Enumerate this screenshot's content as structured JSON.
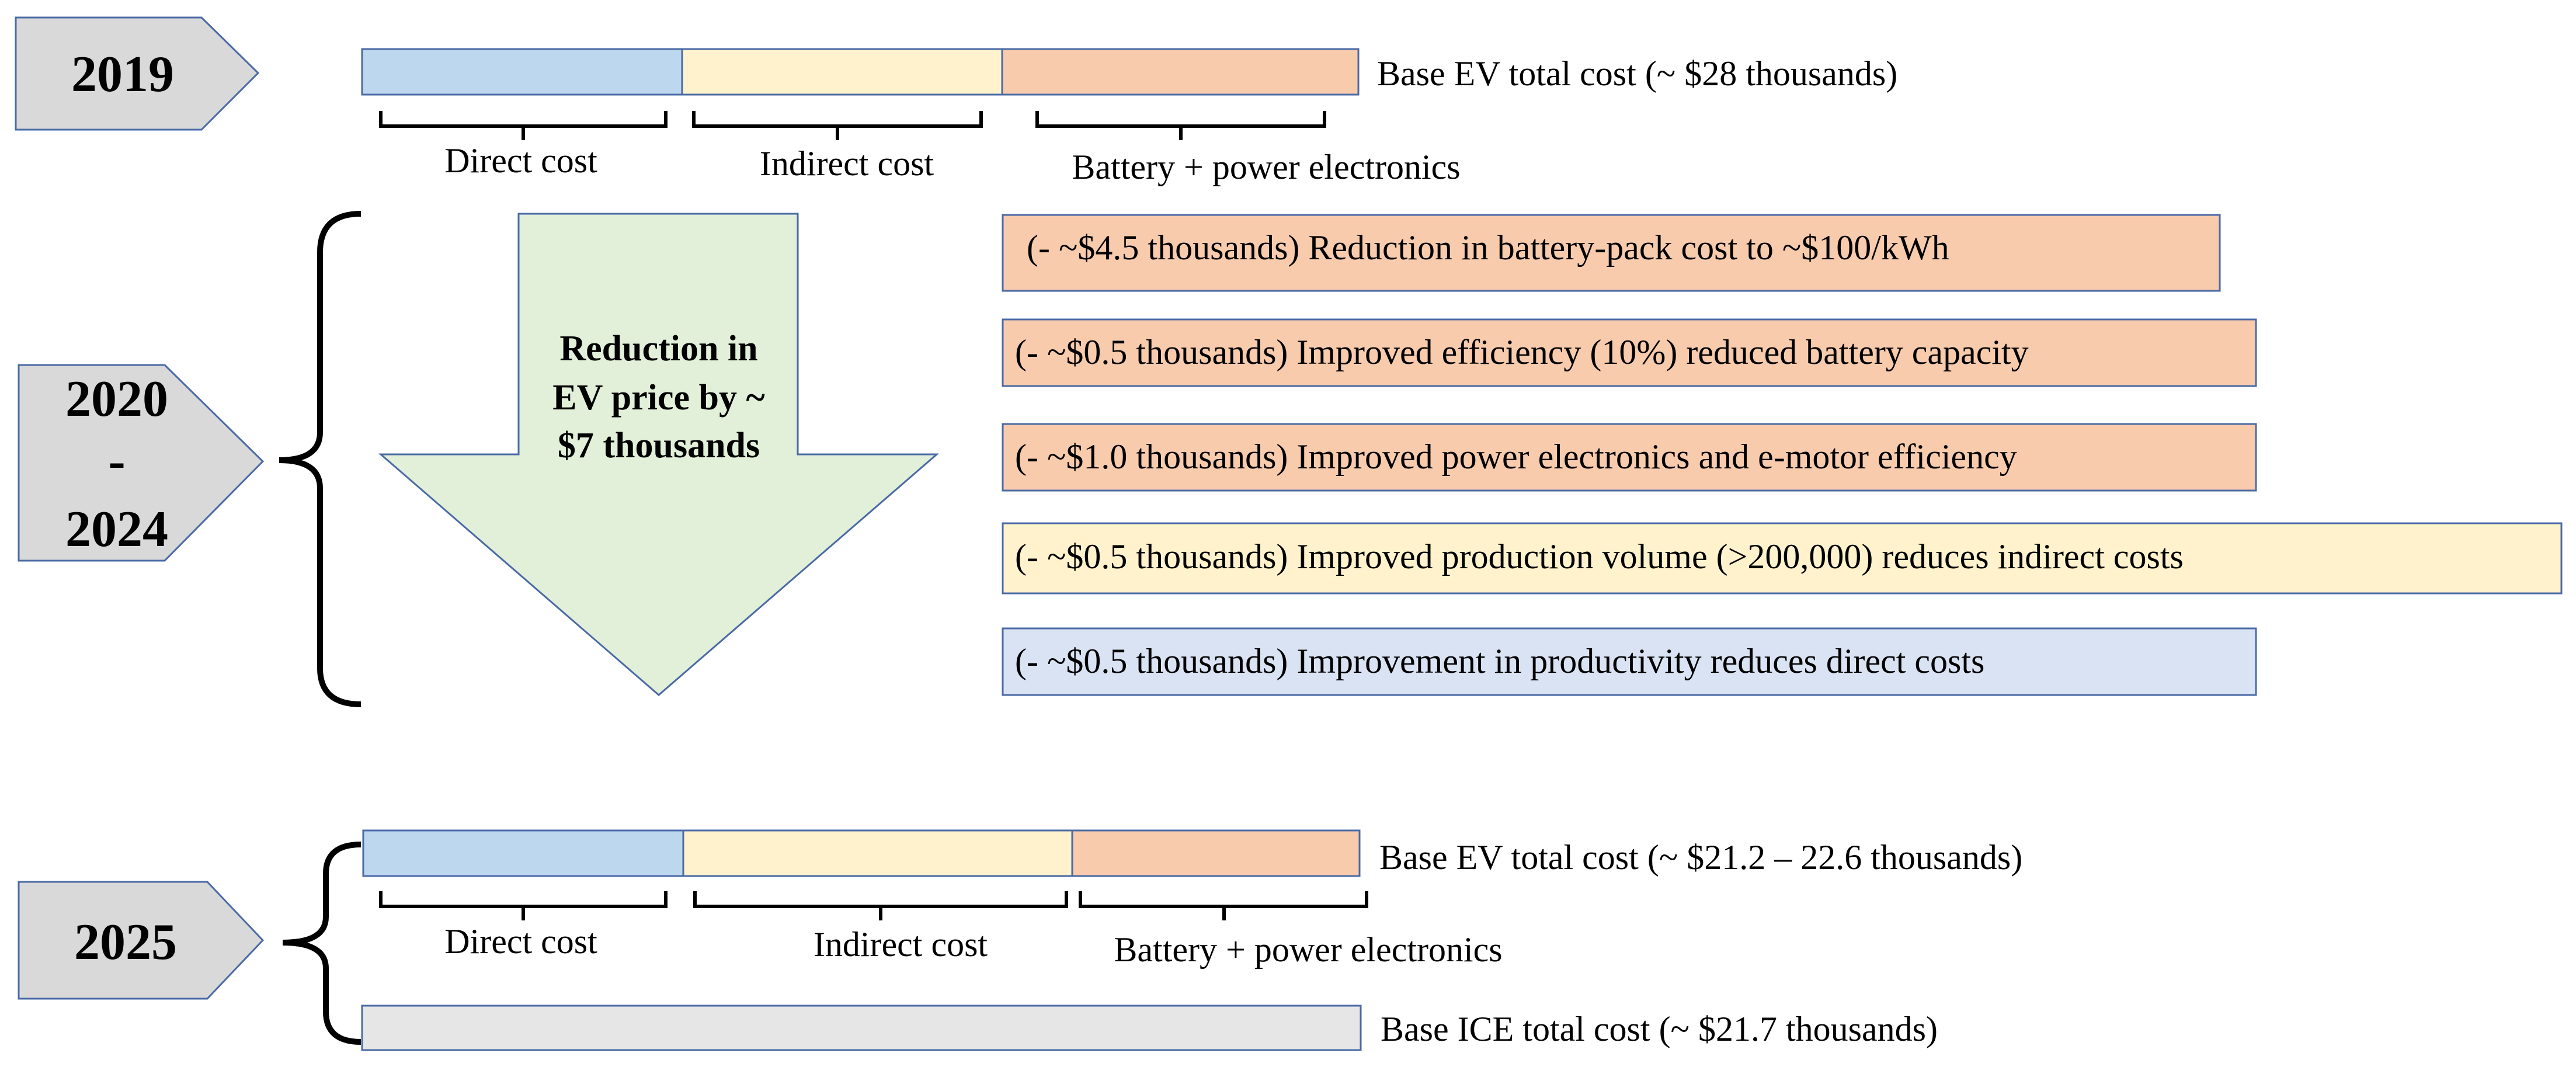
{
  "colors": {
    "direct": "#bdd7ee",
    "indirect": "#fff2cc",
    "battery": "#f8cbad",
    "productivity": "#dae3f3",
    "ice": "#e7e6e6",
    "year_tag": "#d9d9d9",
    "arrow": "#e2efd9",
    "border": "#4a6aa5"
  },
  "section_2019": {
    "year": "2019",
    "bar_label": "Base EV total cost (~ $28 thousands)",
    "segments": [
      "Direct cost",
      "Indirect cost",
      "Battery + power electronics"
    ]
  },
  "section_2020_2024": {
    "year_line1": "2020",
    "year_line2": "-",
    "year_line3": "2024",
    "arrow_text": [
      "Reduction in",
      "EV price by ~",
      "$7 thousands"
    ],
    "reductions": [
      {
        "text": "(- ~$4.5 thousands) Reduction in battery-pack cost to ~$100/kWh",
        "category": "battery"
      },
      {
        "text": "(- ~$0.5 thousands) Improved efficiency (10%) reduced battery capacity",
        "category": "battery"
      },
      {
        "text": "(- ~$1.0 thousands) Improved power electronics and e-motor efficiency",
        "category": "battery"
      },
      {
        "text": "(- ~$0.5 thousands) Improved production volume (>200,000) reduces indirect costs",
        "category": "indirect"
      },
      {
        "text": "(- ~$0.5 thousands) Improvement in productivity reduces direct costs",
        "category": "productivity"
      }
    ]
  },
  "section_2025": {
    "year": "2025",
    "ev_bar_label": "Base EV total cost (~ $21.2 – 22.6 thousands)",
    "segments": [
      "Direct cost",
      "Indirect cost",
      "Battery + power electronics"
    ],
    "ice_bar_label": "Base ICE total cost (~ $21.7 thousands)"
  }
}
